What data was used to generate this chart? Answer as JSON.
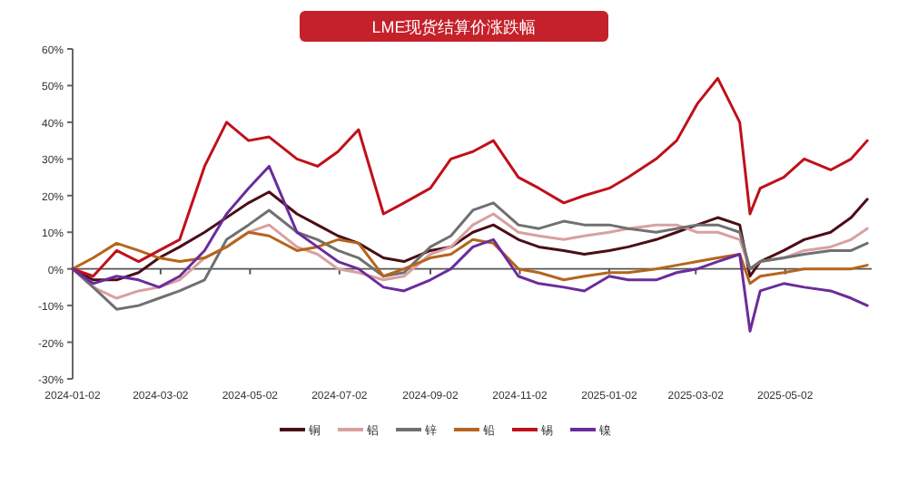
{
  "chart_data": {
    "type": "line",
    "title": "LME现货结算价涨跌幅",
    "x": [
      "2024-01-02",
      "2024-01-16",
      "2024-02-01",
      "2024-02-16",
      "2024-03-01",
      "2024-03-15",
      "2024-04-01",
      "2024-04-16",
      "2024-05-01",
      "2024-05-15",
      "2024-06-03",
      "2024-06-17",
      "2024-07-01",
      "2024-07-15",
      "2024-08-01",
      "2024-08-15",
      "2024-09-02",
      "2024-09-16",
      "2024-10-01",
      "2024-10-15",
      "2024-11-01",
      "2024-11-15",
      "2024-12-02",
      "2024-12-16",
      "2025-01-02",
      "2025-01-15",
      "2025-02-03",
      "2025-02-17",
      "2025-03-03",
      "2025-03-17",
      "2025-04-01",
      "2025-04-08",
      "2025-04-15",
      "2025-05-01",
      "2025-05-15",
      "2025-06-02",
      "2025-06-16",
      "2025-06-27"
    ],
    "series": [
      {
        "name": "铜",
        "color": "#4a0e16",
        "values": [
          0,
          -3,
          -3,
          -1,
          3,
          6,
          10,
          14,
          18,
          21,
          15,
          12,
          9,
          7,
          3,
          2,
          5,
          6,
          10,
          12,
          8,
          6,
          5,
          4,
          5,
          6,
          8,
          10,
          12,
          14,
          12,
          -2,
          2,
          5,
          8,
          10,
          14,
          19
        ]
      },
      {
        "name": "铝",
        "color": "#d9a0a0",
        "values": [
          0,
          -5,
          -8,
          -6,
          -5,
          -3,
          3,
          6,
          10,
          12,
          6,
          4,
          0,
          -1,
          -3,
          -2,
          4,
          6,
          12,
          15,
          10,
          9,
          8,
          9,
          10,
          11,
          12,
          12,
          10,
          10,
          8,
          0,
          2,
          3,
          5,
          6,
          8,
          11
        ]
      },
      {
        "name": "锌",
        "color": "#707070",
        "values": [
          0,
          -5,
          -11,
          -10,
          -8,
          -6,
          -3,
          8,
          12,
          16,
          10,
          8,
          5,
          3,
          -2,
          -1,
          6,
          9,
          16,
          18,
          12,
          11,
          13,
          12,
          12,
          11,
          10,
          11,
          12,
          12,
          10,
          0,
          2,
          3,
          4,
          5,
          5,
          7
        ]
      },
      {
        "name": "铅",
        "color": "#b5651d",
        "values": [
          0,
          3,
          7,
          5,
          3,
          2,
          3,
          6,
          10,
          9,
          5,
          6,
          8,
          7,
          -2,
          0,
          3,
          4,
          8,
          7,
          0,
          -1,
          -3,
          -2,
          -1,
          -1,
          0,
          1,
          2,
          3,
          4,
          -4,
          -2,
          -1,
          0,
          0,
          0,
          1
        ]
      },
      {
        "name": "锡",
        "color": "#c0101a",
        "values": [
          0,
          -2,
          5,
          2,
          5,
          8,
          28,
          40,
          35,
          36,
          30,
          28,
          32,
          38,
          15,
          18,
          22,
          30,
          32,
          35,
          25,
          22,
          18,
          20,
          22,
          25,
          30,
          35,
          45,
          52,
          40,
          15,
          22,
          25,
          30,
          27,
          30,
          35
        ]
      },
      {
        "name": "镍",
        "color": "#6a2c9a",
        "values": [
          0,
          -4,
          -2,
          -3,
          -5,
          -2,
          5,
          15,
          22,
          28,
          10,
          6,
          2,
          0,
          -5,
          -6,
          -3,
          0,
          6,
          8,
          -2,
          -4,
          -5,
          -6,
          -2,
          -3,
          -3,
          -1,
          0,
          2,
          4,
          -17,
          -6,
          -4,
          -5,
          -6,
          -8,
          -10
        ]
      }
    ],
    "xlim": [
      "2024-01-02",
      "2025-06-30"
    ],
    "xticks": [
      "2024-01-02",
      "2024-03-02",
      "2024-05-02",
      "2024-07-02",
      "2024-09-02",
      "2024-11-02",
      "2025-01-02",
      "2025-03-02",
      "2025-05-02"
    ],
    "ylim": [
      -30,
      60
    ],
    "yticks": [
      {
        "value": -30,
        "label": "-30%"
      },
      {
        "value": -20,
        "label": "-20%"
      },
      {
        "value": -10,
        "label": "-10%"
      },
      {
        "value": 0,
        "label": "0%"
      },
      {
        "value": 10,
        "label": "10%"
      },
      {
        "value": 20,
        "label": "20%"
      },
      {
        "value": 30,
        "label": "30%"
      },
      {
        "value": 40,
        "label": "40%"
      },
      {
        "value": 50,
        "label": "50%"
      },
      {
        "value": 60,
        "label": "60%"
      }
    ],
    "legend": "bottom",
    "marker": "none",
    "line_style": "solid"
  }
}
